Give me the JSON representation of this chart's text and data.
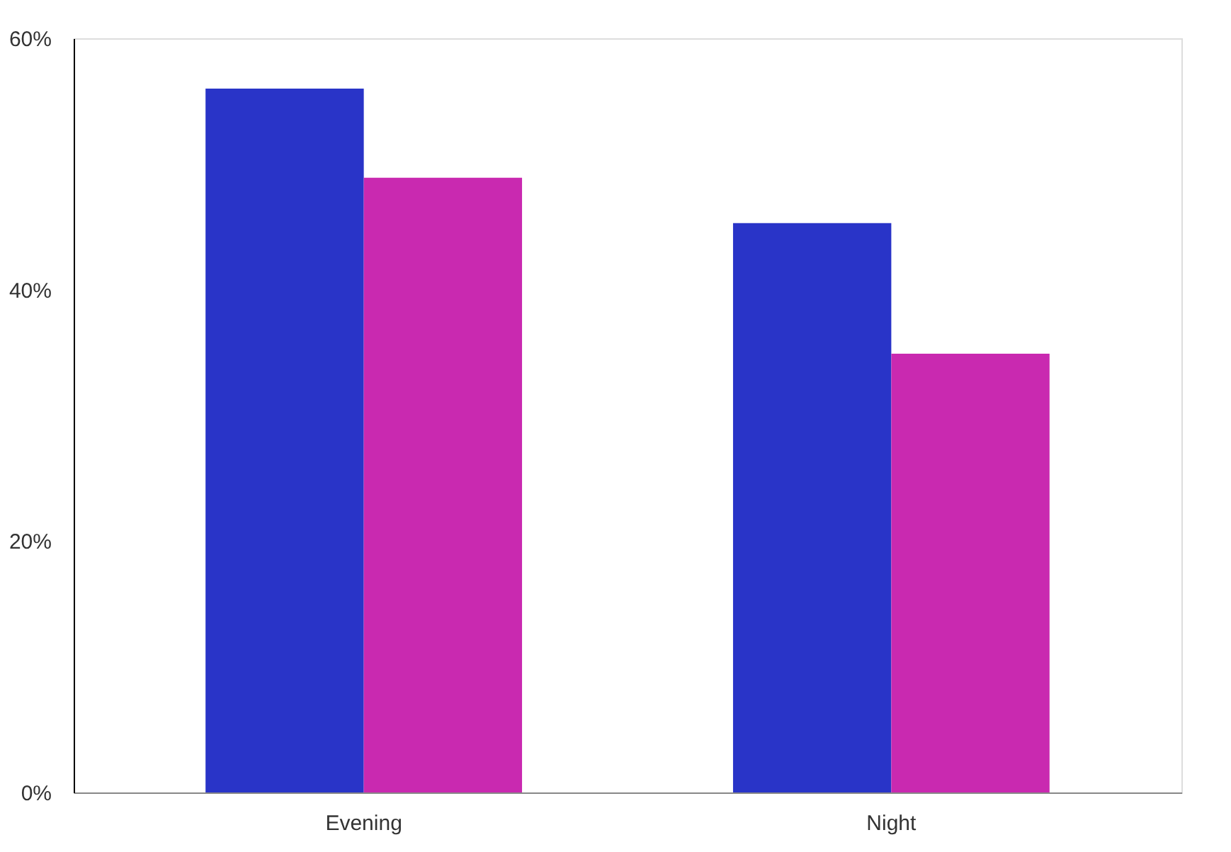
{
  "chart_data": {
    "type": "bar",
    "categories": [
      "Evening",
      "Night"
    ],
    "series": [
      {
        "color": "#2934c8",
        "values": [
          56,
          45.3
        ]
      },
      {
        "color": "#c929b0",
        "values": [
          48.9,
          34.9
        ]
      }
    ],
    "ylim": [
      0,
      60
    ],
    "yticks": [
      {
        "value": 0,
        "label": "0%"
      },
      {
        "value": 20,
        "label": "20%"
      },
      {
        "value": 40,
        "label": "40%"
      },
      {
        "value": 60,
        "label": "60%"
      }
    ],
    "grid": false,
    "legend": false
  }
}
